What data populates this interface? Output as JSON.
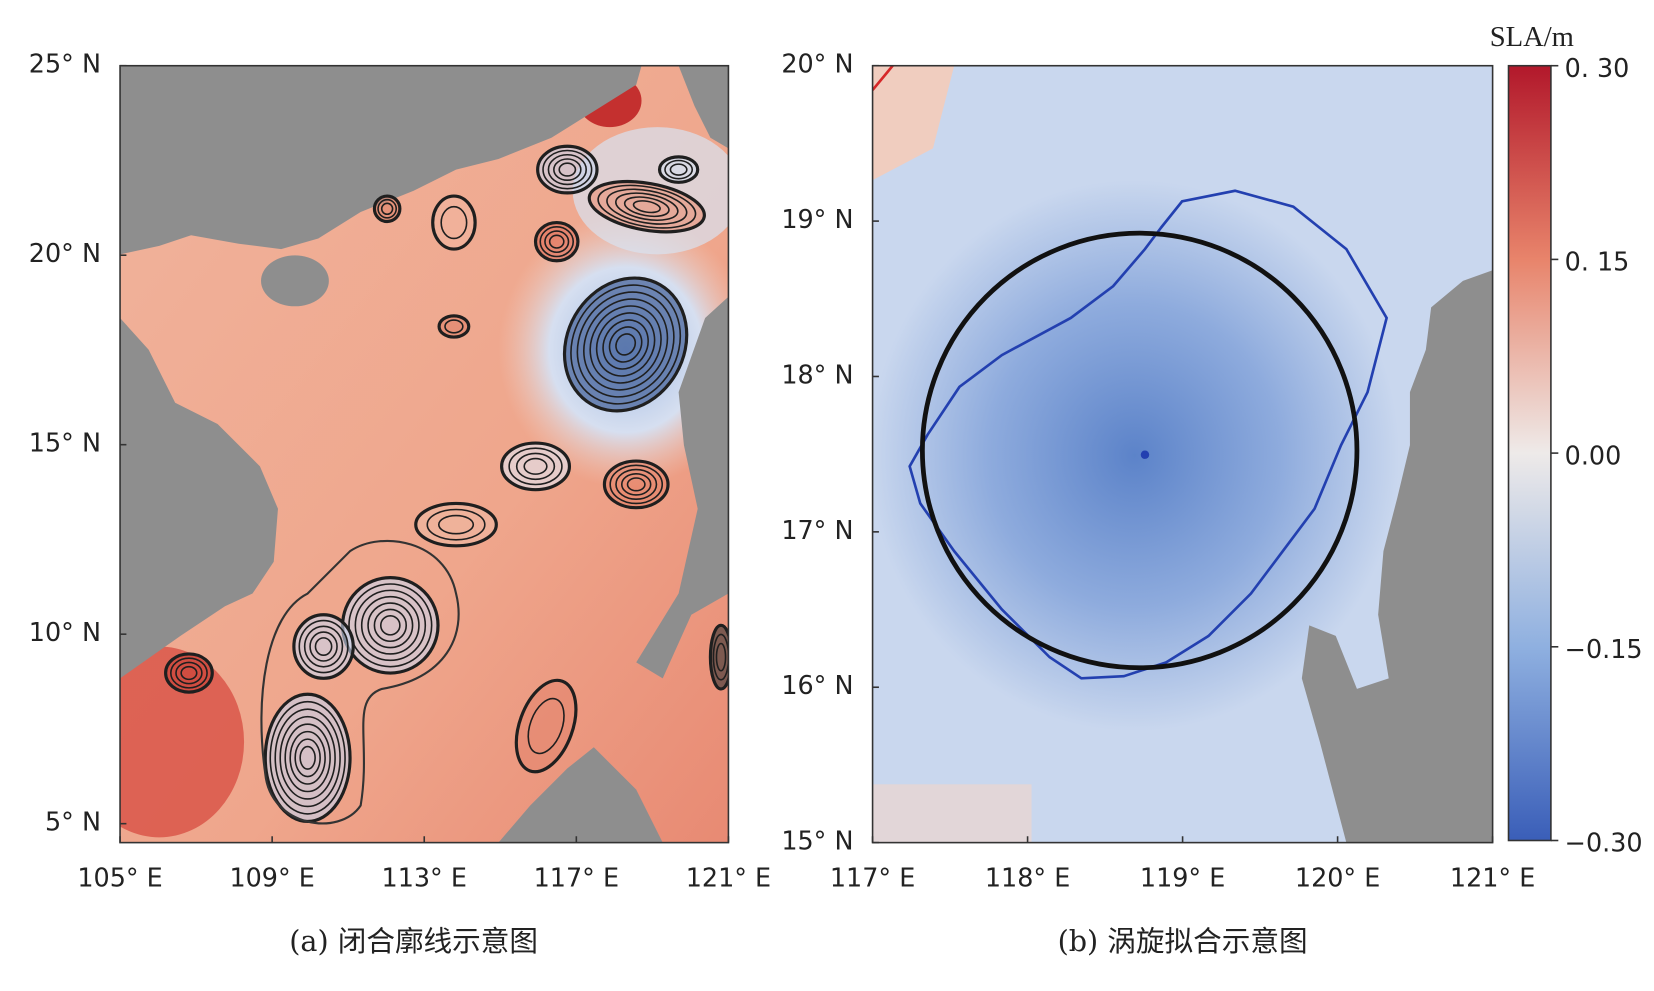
{
  "panels": [
    {
      "caption": "(a) 闭合廓线示意图",
      "xlim": [
        105,
        121
      ],
      "ylim": [
        4.5,
        25
      ],
      "xticks": [
        {
          "value": 105,
          "label": "105° E"
        },
        {
          "value": 109,
          "label": "109° E"
        },
        {
          "value": 113,
          "label": "113° E"
        },
        {
          "value": 117,
          "label": "117° E"
        },
        {
          "value": 121,
          "label": "121° E"
        }
      ],
      "yticks": [
        {
          "value": 25,
          "label": "25° N"
        },
        {
          "value": 20,
          "label": "20° N"
        },
        {
          "value": 15,
          "label": "15° N"
        },
        {
          "value": 10,
          "label": "10° N"
        },
        {
          "value": 5,
          "label": "5° N"
        }
      ]
    },
    {
      "caption": "(b) 涡旋拟合示意图",
      "xlim": [
        117,
        121
      ],
      "ylim": [
        15,
        20
      ],
      "xticks": [
        {
          "value": 117,
          "label": "117° E"
        },
        {
          "value": 118,
          "label": "118° E"
        },
        {
          "value": 119,
          "label": "119° E"
        },
        {
          "value": 120,
          "label": "120° E"
        },
        {
          "value": 121,
          "label": "121° E"
        }
      ],
      "yticks": [
        {
          "value": 20,
          "label": "20° N"
        },
        {
          "value": 19,
          "label": "19° N"
        },
        {
          "value": 18,
          "label": "18° N"
        },
        {
          "value": 17,
          "label": "17° N"
        },
        {
          "value": 16,
          "label": "16° N"
        },
        {
          "value": 15,
          "label": "15° N"
        }
      ]
    }
  ],
  "colorbar": {
    "label": "SLA/m",
    "lim": [
      -0.3,
      0.3
    ],
    "ticks": [
      {
        "value": 0.3,
        "label": "0. 30"
      },
      {
        "value": 0.15,
        "label": "0. 15"
      },
      {
        "value": 0,
        "label": "0.00"
      },
      {
        "value": -0.15,
        "label": "−0.15"
      },
      {
        "value": -0.3,
        "label": "−0.30"
      }
    ]
  }
}
